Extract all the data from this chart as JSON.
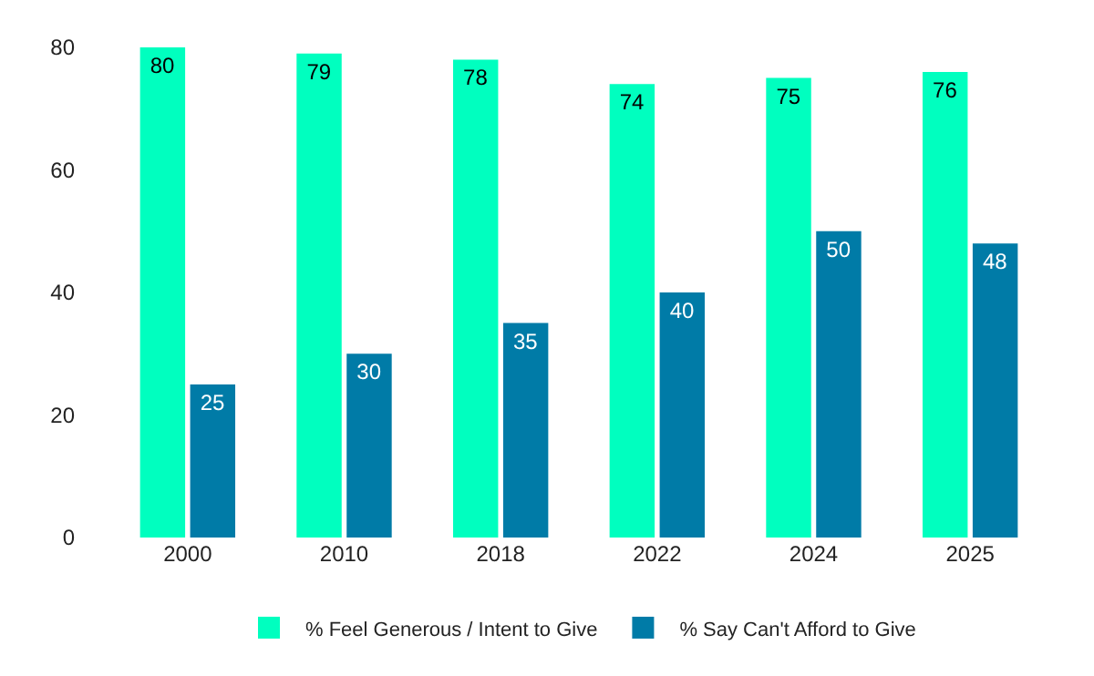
{
  "chart_data": {
    "type": "bar",
    "categories": [
      "2000",
      "2010",
      "2018",
      "2022",
      "2024",
      "2025"
    ],
    "series": [
      {
        "name": "% Feel Generous / Intent to Give",
        "color": "#00ffbf",
        "values": [
          80,
          79,
          78,
          74,
          75,
          76
        ]
      },
      {
        "name": "% Say Can't Afford to Give",
        "color": "#007ba7",
        "values": [
          25,
          30,
          35,
          40,
          50,
          48
        ]
      }
    ],
    "ylim": [
      0,
      80
    ],
    "yticks": [
      0,
      20,
      40,
      60,
      80
    ],
    "data_labels": true,
    "grid": false,
    "legend": "bottom"
  }
}
